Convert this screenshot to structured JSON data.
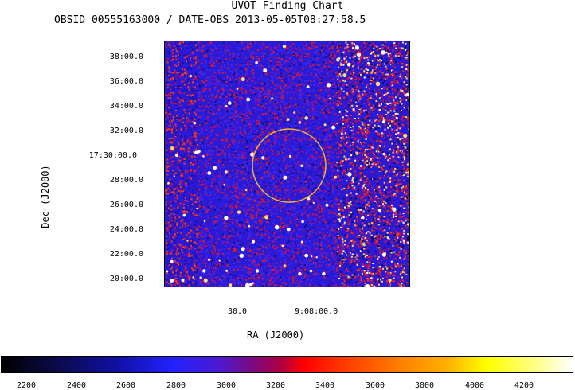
{
  "title": "UVOT Finding Chart",
  "subtitle": "OBSID 00555163000 / DATE-OBS 2013-05-05T08:27:58.5",
  "yaxis": {
    "label": "Dec  (J2000)",
    "ticks": [
      "38:00.0",
      "36:00.0",
      "34:00.0",
      "32:00.0",
      "17:30:00.0",
      "28:00.0",
      "26:00.0",
      "24:00.0",
      "22:00.0",
      "20:00.0"
    ]
  },
  "xaxis": {
    "label": "RA (J2000)",
    "ticks": [
      "30.0",
      "9:08:00.0"
    ]
  },
  "colorbar": {
    "ticks": [
      "2200",
      "2400",
      "2600",
      "2800",
      "3000",
      "3200",
      "3400",
      "3600",
      "3800",
      "4000",
      "4200"
    ]
  },
  "colors": {
    "circle": "#f2b62a",
    "background": "#2a1ad8"
  }
}
